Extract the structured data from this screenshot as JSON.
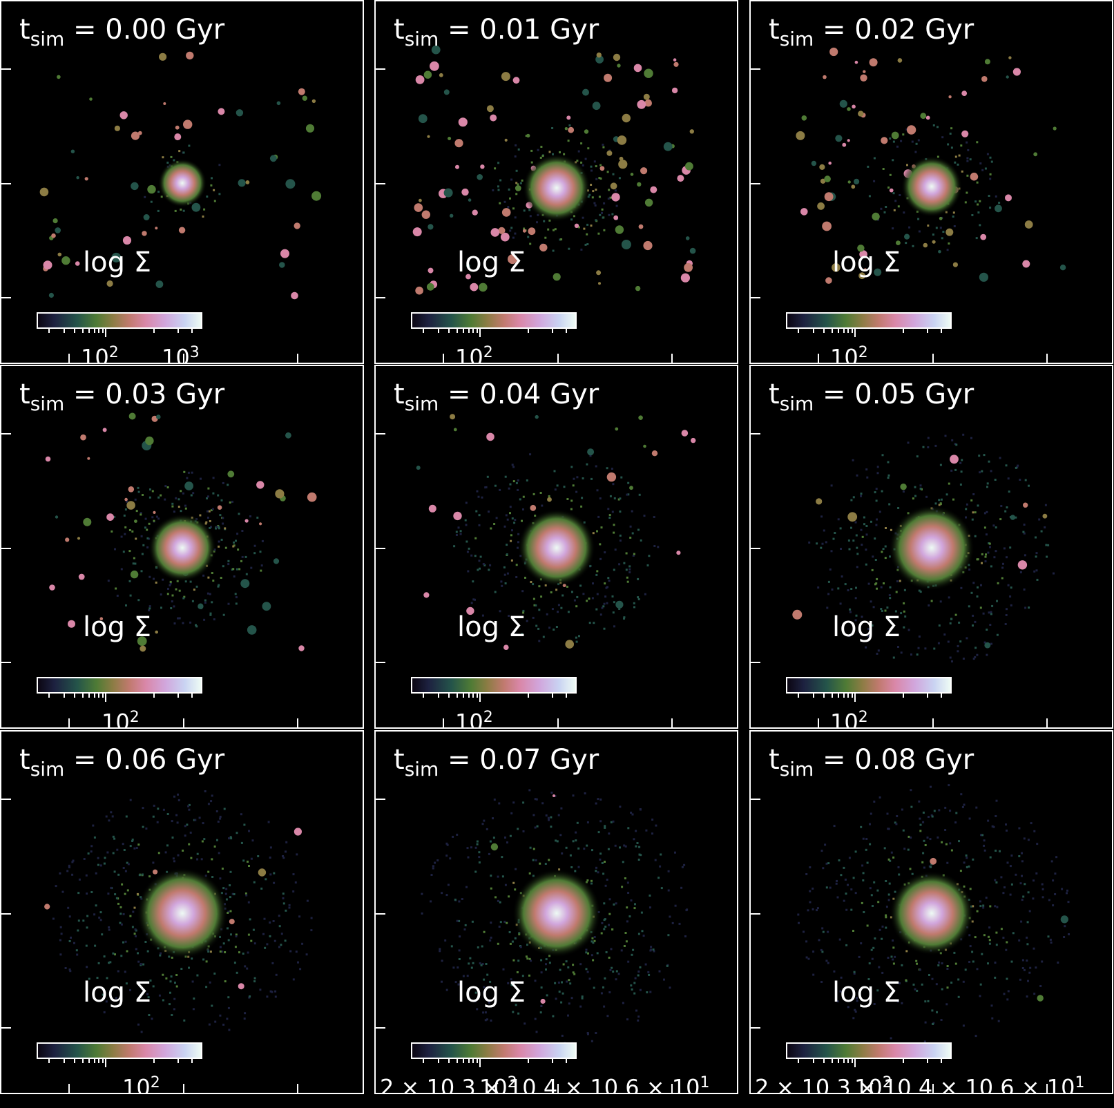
{
  "figure": {
    "colorbar_label": "log Σ",
    "colormap": [
      "#0b0612",
      "#1d2140",
      "#24544a",
      "#4f7b35",
      "#8c7c44",
      "#c07a6e",
      "#d987a8",
      "#d1a6dc",
      "#c9d3f2",
      "#eefbf4"
    ]
  },
  "panels": [
    {
      "title_prefix": "t",
      "title_sub": "sim",
      "title_rest": " = 0.00 Gyr",
      "cb_ticks": [
        {
          "base": "10",
          "exp": "2"
        },
        {
          "base": "10",
          "exp": "3"
        }
      ]
    },
    {
      "title_prefix": "t",
      "title_sub": "sim",
      "title_rest": " = 0.01 Gyr",
      "cb_ticks": [
        {
          "base": "10",
          "exp": "2"
        }
      ]
    },
    {
      "title_prefix": "t",
      "title_sub": "sim",
      "title_rest": " = 0.02 Gyr",
      "cb_ticks": [
        {
          "base": "10",
          "exp": "2"
        }
      ]
    },
    {
      "title_prefix": "t",
      "title_sub": "sim",
      "title_rest": " = 0.03 Gyr",
      "cb_ticks": [
        {
          "base": "10",
          "exp": "2"
        }
      ]
    },
    {
      "title_prefix": "t",
      "title_sub": "sim",
      "title_rest": " = 0.04 Gyr",
      "cb_ticks": [
        {
          "base": "10",
          "exp": "2"
        }
      ]
    },
    {
      "title_prefix": "t",
      "title_sub": "sim",
      "title_rest": " = 0.05 Gyr",
      "cb_ticks": [
        {
          "base": "10",
          "exp": "2"
        }
      ]
    },
    {
      "title_prefix": "t",
      "title_sub": "sim",
      "title_rest": " = 0.06 Gyr",
      "cb_ticks": [
        {
          "base": "10",
          "exp": "2"
        }
      ]
    },
    {
      "title_prefix": "t",
      "title_sub": "sim",
      "title_rest": " = 0.07 Gyr",
      "cb_ticks": [
        {
          "base": "2 × 10 3 × 10 4 × 10 6 × 10",
          "exp": "1"
        },
        {
          "base": "10",
          "exp": "2"
        }
      ]
    },
    {
      "title_prefix": "t",
      "title_sub": "sim",
      "title_rest": " = 0.08 Gyr",
      "cb_ticks": [
        {
          "base": "2 × 10 3 × 10 4 × 10 6 × 10",
          "exp": "1"
        },
        {
          "base": "10",
          "exp": "2"
        }
      ]
    }
  ]
}
